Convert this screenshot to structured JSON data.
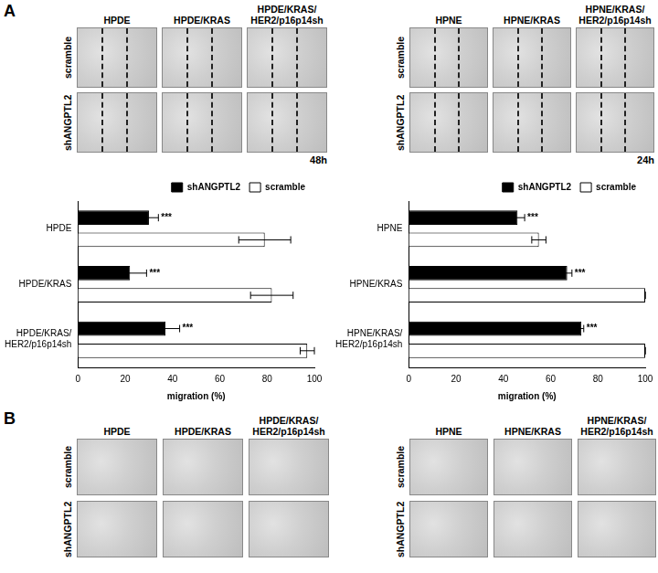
{
  "figure": {
    "panel_A": {
      "label": "A",
      "micrographs": [
        {
          "columns": [
            "HPDE",
            "HPDE/KRAS",
            "HPDE/KRAS/HER2/p16p14sh"
          ],
          "rows": [
            "scramble",
            "shANGPTL2"
          ],
          "time": "48h"
        },
        {
          "columns": [
            "HPNE",
            "HPNE/KRAS",
            "HPNE/KRAS/HER2/p16p14sh"
          ],
          "rows": [
            "scramble",
            "shANGPTL2"
          ],
          "time": "24h"
        }
      ]
    },
    "panel_B": {
      "label": "B",
      "micrographs": [
        {
          "columns": [
            "HPDE",
            "HPDE/KRAS",
            "HPDE/KRAS/HER2/p16p14sh"
          ],
          "rows": [
            "scramble",
            "shANGPTL2"
          ]
        },
        {
          "columns": [
            "HPNE",
            "HPNE/KRAS",
            "HPNE/KRAS/HER2/p16p14sh"
          ],
          "rows": [
            "scramble",
            "shANGPTL2"
          ]
        }
      ]
    }
  },
  "chart_data": [
    {
      "type": "bar",
      "orientation": "horizontal",
      "categories": [
        "HPDE",
        "HPDE/KRAS",
        "HPDE/KRAS/HER2/p16p14sh"
      ],
      "series": [
        {
          "name": "shANGPTL2",
          "color": "#000000",
          "values": [
            30,
            22,
            37
          ],
          "errors": [
            4,
            7,
            6
          ],
          "value_annotations": [
            "***",
            "***",
            "***"
          ]
        },
        {
          "name": "scramble",
          "color": "#ffffff",
          "values": [
            79,
            82,
            97
          ],
          "errors": [
            11,
            9,
            3
          ]
        }
      ],
      "x_label": "migration (%)",
      "xlim": [
        0,
        100
      ],
      "xticks": [
        0,
        20,
        40,
        60,
        80,
        100
      ],
      "legend": "upper right",
      "grid": false
    },
    {
      "type": "bar",
      "orientation": "horizontal",
      "categories": [
        "HPNE",
        "HPNE/KRAS",
        "HPNE/KRAS/HER2/p16p14sh"
      ],
      "series": [
        {
          "name": "shANGPTL2",
          "color": "#000000",
          "values": [
            46,
            67,
            73
          ],
          "errors": [
            3,
            2,
            1
          ],
          "value_annotations": [
            "***",
            "***",
            "***"
          ]
        },
        {
          "name": "scramble",
          "color": "#ffffff",
          "values": [
            55,
            100,
            100
          ],
          "errors": [
            3,
            0,
            0
          ]
        }
      ],
      "x_label": "migration (%)",
      "xlim": [
        0,
        100
      ],
      "xticks": [
        0,
        20,
        40,
        60,
        80,
        100
      ],
      "legend": "upper right",
      "grid": false
    }
  ]
}
